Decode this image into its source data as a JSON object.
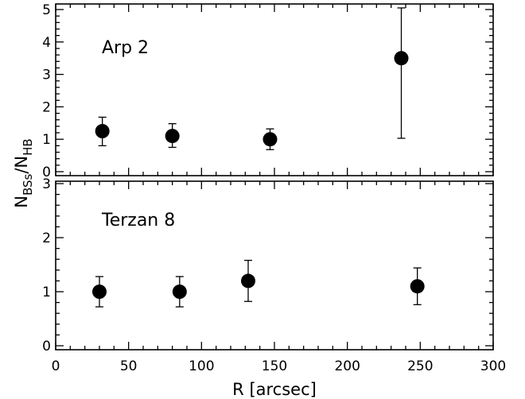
{
  "chart_data": {
    "type": "scatter",
    "xlabel": "R [arcsec]",
    "ylabel": {
      "base1": "N",
      "sub1": "BSs",
      "slash": "/",
      "base2": "N",
      "sub2": "HB"
    },
    "xlim": [
      0,
      300
    ],
    "xticks": [
      "0",
      "50",
      "100",
      "150",
      "200",
      "250",
      "300"
    ],
    "grid": false,
    "panels": [
      {
        "label": "Arp 2",
        "ylim": [
          0,
          5
        ],
        "yticks": [
          "0",
          "1",
          "2",
          "3",
          "4",
          "5"
        ],
        "points": [
          {
            "x": 32,
            "y": 1.25,
            "ylow": 0.8,
            "yhigh": 1.68
          },
          {
            "x": 80,
            "y": 1.1,
            "ylow": 0.75,
            "yhigh": 1.48
          },
          {
            "x": 147,
            "y": 1.0,
            "ylow": 0.68,
            "yhigh": 1.32
          },
          {
            "x": 237,
            "y": 3.5,
            "ylow": 1.03,
            "yhigh": 5.05
          }
        ]
      },
      {
        "label": "Terzan 8",
        "ylim": [
          0,
          3
        ],
        "yticks": [
          "0",
          "1",
          "2",
          "3"
        ],
        "points": [
          {
            "x": 30,
            "y": 1.0,
            "ylow": 0.72,
            "yhigh": 1.28
          },
          {
            "x": 85,
            "y": 1.0,
            "ylow": 0.72,
            "yhigh": 1.28
          },
          {
            "x": 132,
            "y": 1.2,
            "ylow": 0.82,
            "yhigh": 1.58
          },
          {
            "x": 248,
            "y": 1.1,
            "ylow": 0.76,
            "yhigh": 1.44
          }
        ]
      }
    ]
  }
}
